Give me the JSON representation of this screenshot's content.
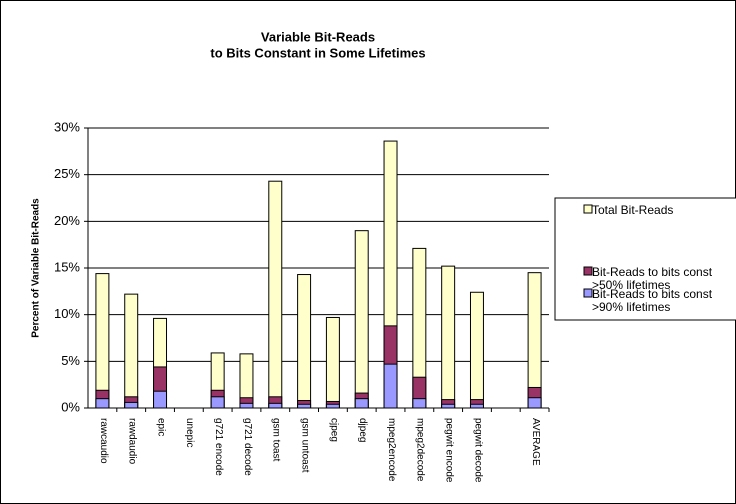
{
  "chart_data": {
    "type": "bar",
    "title": [
      "Variable Bit-Reads",
      "to Bits Constant in Some Lifetimes"
    ],
    "ylabel": "Percent of Variable Bit-Reads",
    "categories": [
      "rawcaudio",
      "rawdaudio",
      "epic",
      "unepic",
      "g721 encode",
      "g721 decode",
      "gsm toast",
      "gsm untoast",
      "cjpeg",
      "djpeg",
      "mpeg2encode",
      "mpeg2decode",
      "pegwit encode",
      "pegwit decode",
      null,
      "AVERAGE"
    ],
    "series": [
      {
        "name": "Total Bit-Reads",
        "color": "#ffffcc",
        "values": [
          14.4,
          12.2,
          9.6,
          0,
          5.9,
          5.8,
          24.3,
          14.3,
          9.7,
          19.0,
          28.6,
          17.1,
          15.2,
          12.4,
          null,
          14.5
        ]
      },
      {
        "name": "Bit-Reads to bits const >50% lifetimes",
        "color": "#993366",
        "values": [
          1.9,
          1.2,
          4.4,
          0,
          1.9,
          1.1,
          1.2,
          0.8,
          0.7,
          1.6,
          8.8,
          3.3,
          0.9,
          0.9,
          null,
          2.2
        ]
      },
      {
        "name": "Bit-Reads to bits const >90% lifetimes",
        "color": "#9999ff",
        "values": [
          1.0,
          0.6,
          1.8,
          0,
          1.2,
          0.5,
          0.5,
          0.4,
          0.4,
          1.0,
          4.7,
          1.0,
          0.4,
          0.4,
          null,
          1.1
        ]
      }
    ],
    "ylim": [
      0,
      30
    ],
    "yticks": [
      {
        "value": 0,
        "label": "0%"
      },
      {
        "value": 5,
        "label": "5%"
      },
      {
        "value": 10,
        "label": "10%"
      },
      {
        "value": 15,
        "label": "15%"
      },
      {
        "value": 20,
        "label": "20%"
      },
      {
        "value": 25,
        "label": "25%"
      },
      {
        "value": 30,
        "label": "30%"
      }
    ],
    "grid": true,
    "legend": "right"
  }
}
